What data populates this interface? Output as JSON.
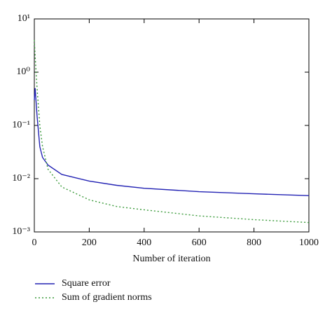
{
  "chart_data": {
    "type": "line",
    "x_label": "Number of iteration",
    "x": [
      0,
      3,
      10,
      20,
      30,
      50,
      100,
      200,
      300,
      400,
      600,
      800,
      1000
    ],
    "series": [
      {
        "name": "Square error",
        "color": "#2323b4",
        "dash": "solid",
        "values": [
          0.3,
          0.5,
          0.15,
          0.04,
          0.025,
          0.018,
          0.012,
          0.009,
          0.0075,
          0.0066,
          0.0057,
          0.0052,
          0.0048
        ]
      },
      {
        "name": "Sum of gradient norms",
        "color": "#3a9a3a",
        "dash": "dotted",
        "values": [
          4,
          2,
          0.5,
          0.1,
          0.04,
          0.015,
          0.007,
          0.004,
          0.003,
          0.0026,
          0.002,
          0.0017,
          0.0015
        ]
      }
    ],
    "xlim": [
      0,
      1000
    ],
    "xticks": [
      0,
      200,
      400,
      600,
      800,
      1000
    ],
    "ylim": [
      0.001,
      10
    ],
    "ylog": true,
    "yticks": [
      {
        "value": 10,
        "label": "10¹"
      },
      {
        "value": 1,
        "label": "10⁰"
      },
      {
        "value": 0.1,
        "label": "10⁻¹"
      },
      {
        "value": 0.01,
        "label": "10⁻²"
      },
      {
        "value": 0.001,
        "label": "10⁻³"
      }
    ],
    "grid": false,
    "legend": "bottom"
  }
}
